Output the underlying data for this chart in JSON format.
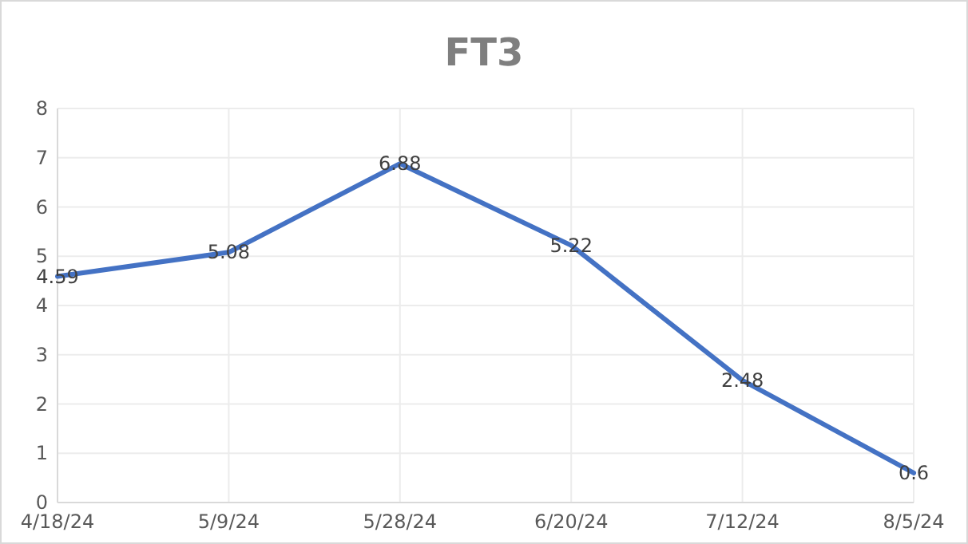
{
  "chart_data": {
    "type": "line",
    "title": "FT3",
    "categories": [
      "4/18/24",
      "5/9/24",
      "5/28/24",
      "6/20/24",
      "7/12/24",
      "8/5/24"
    ],
    "series": [
      {
        "color": "#4472c4",
        "values": [
          4.59,
          5.08,
          6.88,
          5.22,
          2.48,
          0.6
        ]
      }
    ],
    "ylim": [
      0,
      8
    ],
    "yticks": [
      0,
      1,
      2,
      3,
      4,
      5,
      6,
      7,
      8
    ],
    "grid": true,
    "data_labels": true,
    "marker": "none",
    "line_style": "solid"
  }
}
